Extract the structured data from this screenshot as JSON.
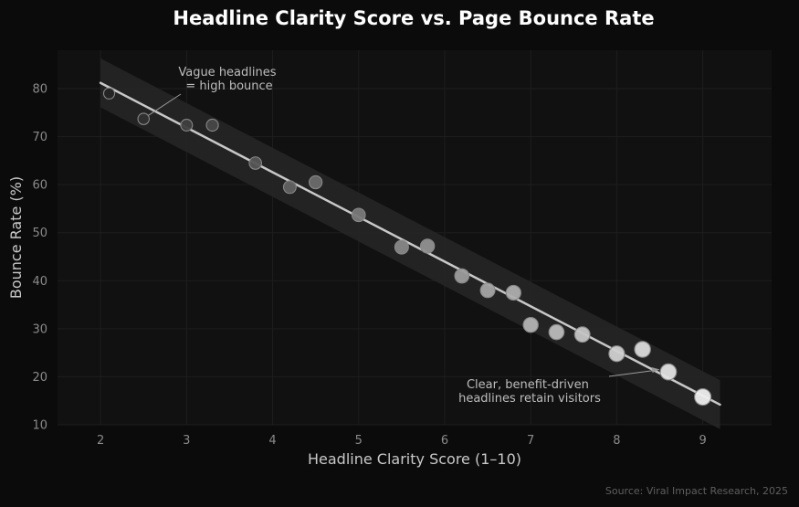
{
  "chart_data": {
    "type": "scatter",
    "title": "Headline Clarity Score vs. Page Bounce Rate",
    "xlabel": "Headline Clarity Score (1–10)",
    "ylabel": "Bounce Rate (%)",
    "xlim": [
      1.5,
      9.8
    ],
    "ylim": [
      10,
      88
    ],
    "xticks": [
      2,
      3,
      4,
      5,
      6,
      7,
      8,
      9
    ],
    "yticks": [
      10,
      20,
      30,
      40,
      50,
      60,
      70,
      80
    ],
    "grid": true,
    "points": [
      {
        "x": 2.1,
        "y": 79.0
      },
      {
        "x": 2.5,
        "y": 73.7
      },
      {
        "x": 3.0,
        "y": 72.4
      },
      {
        "x": 3.3,
        "y": 72.4
      },
      {
        "x": 3.8,
        "y": 64.5
      },
      {
        "x": 4.2,
        "y": 59.5
      },
      {
        "x": 4.5,
        "y": 60.5
      },
      {
        "x": 5.0,
        "y": 53.7
      },
      {
        "x": 5.5,
        "y": 47.0
      },
      {
        "x": 5.8,
        "y": 47.2
      },
      {
        "x": 6.2,
        "y": 41.0
      },
      {
        "x": 6.5,
        "y": 38.0
      },
      {
        "x": 6.8,
        "y": 37.5
      },
      {
        "x": 7.0,
        "y": 30.8
      },
      {
        "x": 7.3,
        "y": 29.3
      },
      {
        "x": 7.6,
        "y": 28.8
      },
      {
        "x": 8.0,
        "y": 24.8
      },
      {
        "x": 8.3,
        "y": 25.7
      },
      {
        "x": 8.6,
        "y": 21.0
      },
      {
        "x": 9.0,
        "y": 15.8
      }
    ],
    "trend_line": {
      "x_start": 2.0,
      "y_start": 81.2,
      "x_end": 9.2,
      "y_end": 14.2
    },
    "confidence_band": {
      "half_width": 5.1
    },
    "annotations": [
      {
        "text_lines": [
          "Vague headlines",
          "= high bounce"
        ],
        "point_x": 2.5,
        "point_y": 73.7
      },
      {
        "text_lines": [
          "Clear, benefit-driven",
          "headlines retain visitors"
        ],
        "point_x": 8.5,
        "point_y": 21.5
      }
    ],
    "source": "Source: Viral Impact Research, 2025"
  },
  "colors": {
    "background": "#0b0b0b",
    "plot_background": "#111111",
    "grid": "#1e1e1e",
    "band": "#262626",
    "trend_line": "#c8c8c8",
    "point_light": "#eeeeee",
    "point_dark": "#222222",
    "point_edge": "#888888"
  }
}
